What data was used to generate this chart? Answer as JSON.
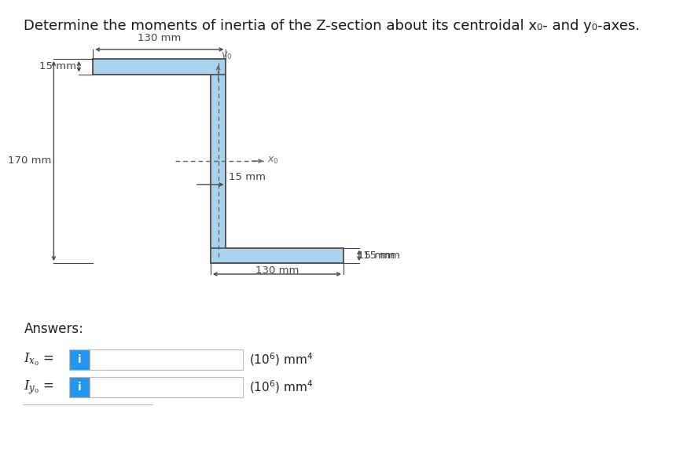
{
  "title": "Determine the moments of inertia of the Z-section about its centroidal x₀- and y₀-axes.",
  "bg_color": "#ffffff",
  "shape_fill": "#a8d4f0",
  "shape_edge": "#555555",
  "dim_color": "#444444",
  "axis_color": "#666666",
  "answer_box_color": "#2196F3",
  "answer_box_text": "i",
  "label_130mm_top": "130 mm",
  "label_15mm_left": "15 mm",
  "label_170mm": "170 mm",
  "label_15mm_web": "15 mm",
  "label_15mm_bot": "15 mm",
  "label_130mm_bot": "130 mm",
  "answers_label": "Answers:",
  "units_label": "(10⁶) mm⁴"
}
